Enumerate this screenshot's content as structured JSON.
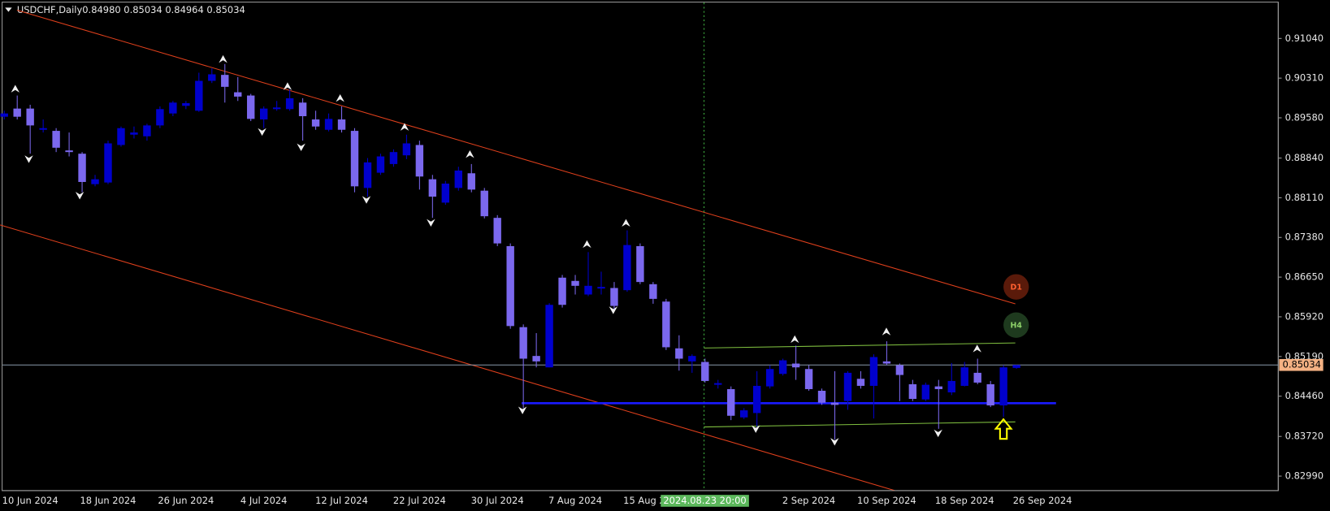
{
  "chart_data": {
    "type": "candlestick",
    "title": "USDCHF,Daily",
    "subtitle": "0.84980 0.85034 0.84964 0.85034",
    "categories": [
      null,
      null,
      "10 Jun 2024",
      null,
      null,
      null,
      null,
      null,
      "18 Jun 2024",
      null,
      null,
      null,
      null,
      null,
      "26 Jun 2024",
      null,
      null,
      null,
      null,
      null,
      "4 Jul 2024",
      null,
      null,
      null,
      null,
      null,
      "12 Jul 2024",
      null,
      null,
      null,
      null,
      null,
      "22 Jul 2024",
      null,
      null,
      null,
      null,
      null,
      "30 Jul 2024",
      null,
      null,
      null,
      null,
      null,
      "7 Aug 2024",
      null,
      null,
      null,
      null,
      null,
      "15 Aug 2024",
      null,
      null,
      null,
      null,
      null,
      null,
      null,
      null,
      null,
      null,
      null,
      "2 Sep 2024",
      null,
      null,
      null,
      null,
      null,
      "10 Sep 2024",
      null,
      null,
      null,
      null,
      null,
      "18 Sep 2024",
      null,
      null,
      null,
      null,
      null,
      "26 Sep 2024"
    ],
    "open": [
      0.896,
      0.8975,
      0.8975,
      0.8936,
      0.8934,
      0.8898,
      0.8892,
      0.8836,
      0.8839,
      0.8908,
      0.8927,
      0.8924,
      0.8944,
      0.8966,
      0.898,
      0.8971,
      0.9026,
      0.9037,
      0.9005,
      0.8999,
      0.8955,
      0.8974,
      0.8974,
      0.8986,
      0.8955,
      0.8936,
      0.8955,
      0.8934,
      0.8829,
      0.8857,
      0.8873,
      0.8889,
      0.8908,
      0.8845,
      0.8802,
      0.8829,
      0.8856,
      0.8824,
      0.8774,
      0.8722,
      0.8573,
      0.852,
      0.8499,
      0.8664,
      0.8658,
      0.8633,
      0.8644,
      0.8645,
      0.8641,
      0.8722,
      0.8652,
      0.862,
      0.8534,
      0.851,
      0.8509,
      0.8467,
      0.8459,
      0.8407,
      0.8415,
      0.8464,
      0.8487,
      0.8506,
      0.8496,
      0.8456,
      0.8434,
      0.8437,
      0.8478,
      0.8465,
      0.851,
      0.8503,
      0.8468,
      0.844,
      0.8464,
      0.8453,
      0.8465,
      0.8489,
      0.8468,
      0.8429,
      0.8498,
      null,
      null
    ],
    "high": [
      0.8971,
      0.8999,
      0.8982,
      0.8955,
      0.8939,
      0.8931,
      0.8895,
      0.8853,
      0.8916,
      0.8942,
      0.8942,
      0.8947,
      0.8979,
      0.8989,
      0.8989,
      0.9041,
      0.9049,
      0.9057,
      0.9033,
      0.9002,
      0.8979,
      0.8989,
      0.901,
      0.8994,
      0.8971,
      0.8966,
      0.8979,
      0.8939,
      0.8884,
      0.8892,
      0.89,
      0.8927,
      0.8916,
      0.8853,
      0.8842,
      0.8868,
      0.8873,
      0.8829,
      0.8779,
      0.8727,
      0.8578,
      0.8562,
      0.8617,
      0.8669,
      0.8669,
      0.8711,
      0.8675,
      0.8656,
      0.8751,
      0.8727,
      0.8656,
      0.8625,
      0.8558,
      0.8523,
      0.8515,
      0.8476,
      0.8464,
      0.8424,
      0.8492,
      0.8503,
      0.8515,
      0.8539,
      0.8503,
      0.846,
      0.8492,
      0.8492,
      0.8492,
      0.8523,
      0.8547,
      0.8506,
      0.8476,
      0.8471,
      0.8476,
      0.8507,
      0.8509,
      0.8515,
      0.8474,
      0.8503,
      0.85034,
      null,
      null
    ],
    "low": [
      0.8955,
      0.8955,
      0.8892,
      0.8931,
      0.8895,
      0.8887,
      0.8821,
      0.8832,
      0.8836,
      0.8905,
      0.892,
      0.8916,
      0.8939,
      0.8961,
      0.8974,
      0.8969,
      0.9022,
      0.8986,
      0.8989,
      0.8952,
      0.8939,
      0.8971,
      0.8971,
      0.8916,
      0.8936,
      0.8933,
      0.8931,
      0.8821,
      0.8813,
      0.8853,
      0.8868,
      0.8882,
      0.8826,
      0.8774,
      0.8798,
      0.8824,
      0.8821,
      0.8773,
      0.8722,
      0.857,
      0.8424,
      0.8499,
      0.8499,
      0.8609,
      0.8633,
      0.863,
      0.8633,
      0.8606,
      0.8638,
      0.8652,
      0.8616,
      0.8531,
      0.8493,
      0.8489,
      0.8471,
      0.846,
      0.8402,
      0.8404,
      0.839,
      0.846,
      0.8484,
      0.8476,
      0.8456,
      0.843,
      0.8366,
      0.8421,
      0.846,
      0.8405,
      0.8503,
      0.8437,
      0.8437,
      0.8437,
      0.8386,
      0.8448,
      0.8464,
      0.8468,
      0.8426,
      0.8408,
      0.84964,
      null,
      null
    ],
    "close": [
      0.8966,
      0.896,
      0.8944,
      0.8939,
      0.8903,
      0.8895,
      0.884,
      0.8845,
      0.8911,
      0.8939,
      0.8931,
      0.8944,
      0.8974,
      0.8986,
      0.8985,
      0.9026,
      0.9038,
      0.9015,
      0.8997,
      0.8956,
      0.8975,
      0.8977,
      0.8994,
      0.8961,
      0.8942,
      0.8956,
      0.8936,
      0.8832,
      0.8876,
      0.8887,
      0.8895,
      0.8911,
      0.885,
      0.8813,
      0.8837,
      0.8861,
      0.8826,
      0.8777,
      0.8727,
      0.8575,
      0.8515,
      0.851,
      0.8614,
      0.8614,
      0.8649,
      0.8649,
      0.8647,
      0.8612,
      0.8724,
      0.8656,
      0.8625,
      0.8536,
      0.8515,
      0.852,
      0.8474,
      0.847,
      0.841,
      0.842,
      0.8465,
      0.8496,
      0.8512,
      0.8499,
      0.8459,
      0.8434,
      0.843,
      0.8489,
      0.8465,
      0.8518,
      0.8506,
      0.8485,
      0.8441,
      0.8467,
      0.8459,
      0.8474,
      0.8499,
      0.8471,
      0.8429,
      0.8499,
      0.85034,
      null,
      null
    ],
    "up_color": "#0000cd",
    "down_color": "#7b68ee",
    "ylim": [
      0.82723,
      0.917
    ],
    "yticks": [
      {
        "value": 0.9104,
        "label": "0.91040"
      },
      {
        "value": 0.9031,
        "label": "0.90310"
      },
      {
        "value": 0.8958,
        "label": "0.89580"
      },
      {
        "value": 0.8884,
        "label": "0.88840"
      },
      {
        "value": 0.8811,
        "label": "0.88110"
      },
      {
        "value": 0.8738,
        "label": "0.87380"
      },
      {
        "value": 0.8665,
        "label": "0.86650"
      },
      {
        "value": 0.8592,
        "label": "0.85920"
      },
      {
        "value": 0.8519,
        "label": "0.85190"
      },
      {
        "value": 0.8446,
        "label": "0.84460"
      },
      {
        "value": 0.8372,
        "label": "0.83720"
      },
      {
        "value": 0.8299,
        "label": "0.82990"
      }
    ],
    "current_price": 0.85034,
    "cursor_label": "2024.08.23 20:00",
    "badges": [
      "D1",
      "H4"
    ]
  }
}
